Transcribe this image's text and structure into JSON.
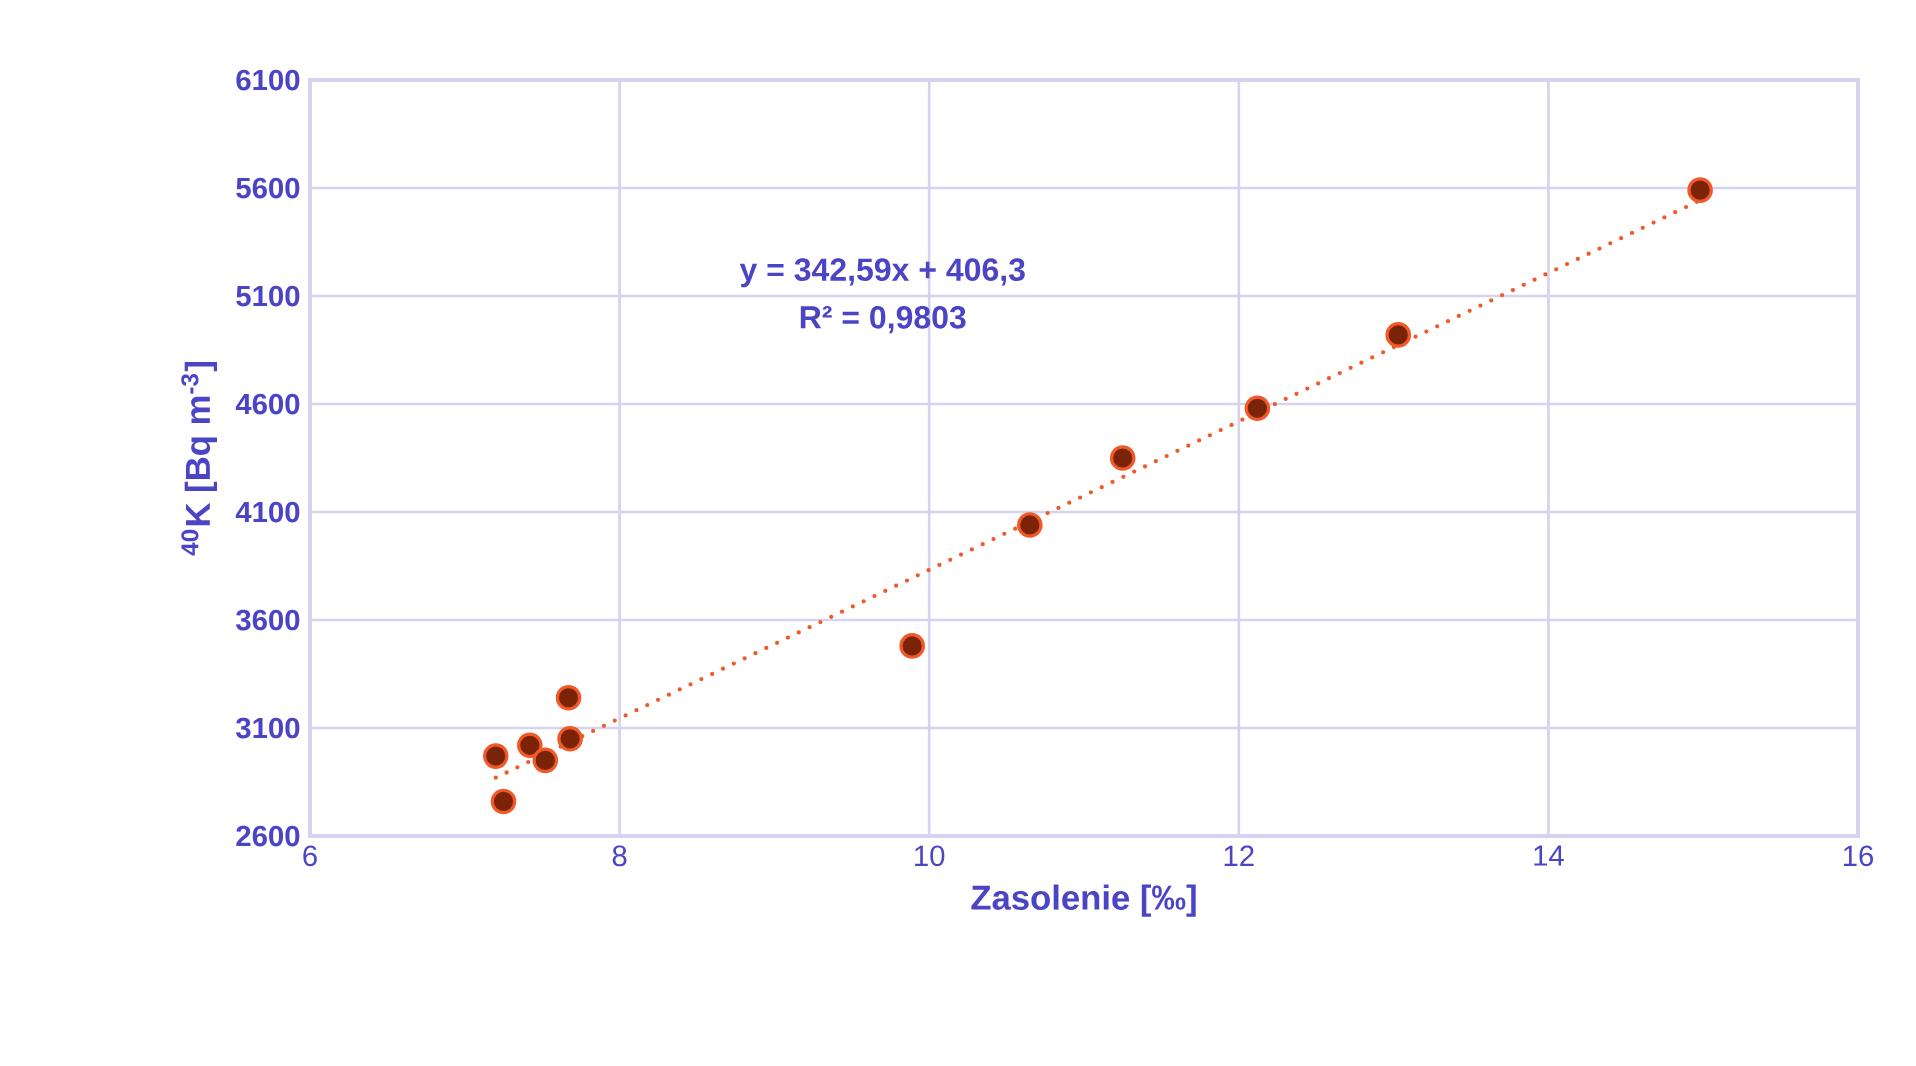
{
  "chart_data": {
    "type": "scatter",
    "xlabel": "Zasolenie [‰]",
    "ylabel": "$^{40}$K [Bq m$^{-3}$]",
    "xlim": [
      6,
      16
    ],
    "xticks": [
      6,
      8,
      10,
      12,
      14,
      16
    ],
    "ylim": [
      2600,
      6100
    ],
    "yticks": [
      2600,
      3100,
      3600,
      4100,
      4600,
      5100,
      5600,
      6100
    ],
    "grid": true,
    "marker": "circle",
    "annotations": [
      "y = 342,59x + 406,3",
      "R² = 0,9803"
    ],
    "series": [
      {
        "color": "#7b2306",
        "x": [
          14.98,
          13.03,
          12.12,
          11.25,
          10.65,
          9.89,
          7.67,
          7.68,
          7.42,
          7.52,
          7.2,
          7.25
        ],
        "values": [
          5590,
          4920,
          4580,
          4350,
          4040,
          3480,
          3240,
          3050,
          3020,
          2950,
          2970,
          2760
        ]
      },
      {
        "type": "line",
        "color": "#f05a28",
        "line_style": "dotted",
        "marker": "none",
        "x": [
          7.2,
          15.0
        ],
        "values": [
          2870,
          5550
        ]
      }
    ]
  }
}
